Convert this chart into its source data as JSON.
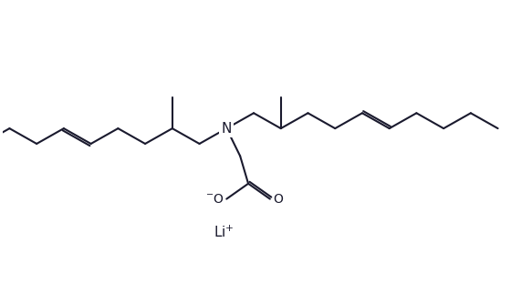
{
  "background_color": "#ffffff",
  "line_color": "#1a1a2e",
  "line_width": 1.5,
  "figsize": [
    5.6,
    3.11
  ],
  "dpi": 100
}
